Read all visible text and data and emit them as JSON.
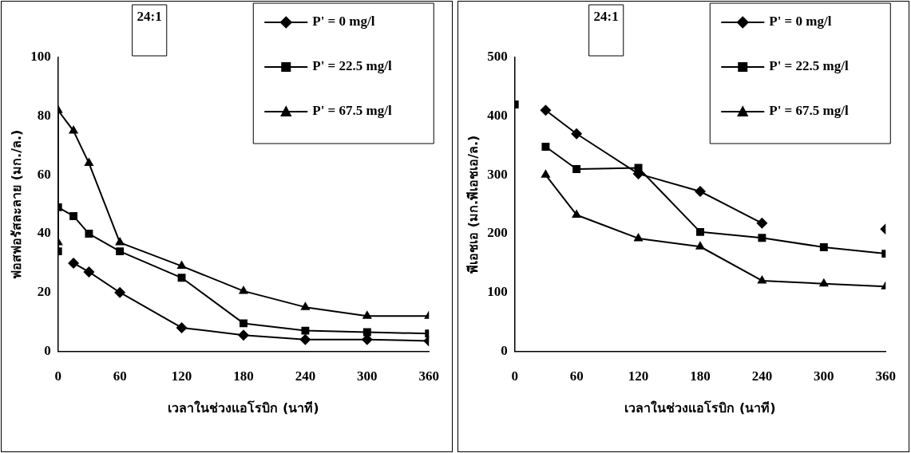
{
  "chart_data": [
    {
      "type": "line",
      "xlabel": "เวลาในช่วงแอโรบิก (นาที)",
      "ylabel": "ฟอสฟอรัสละลาย (มก./ล.)",
      "annotations": [
        "24:1"
      ],
      "xlim": [
        0,
        360
      ],
      "xticks": [
        0,
        60,
        120,
        180,
        240,
        300,
        360
      ],
      "ylim": [
        0,
        100
      ],
      "yticks": [
        0,
        20,
        40,
        60,
        80,
        100
      ],
      "grid": false,
      "legend": "top right",
      "line_style": "solid",
      "series": [
        {
          "name": "P' = 0 mg/l",
          "color": "#000000",
          "marker": "diamond",
          "x": [
            15,
            30,
            60,
            120,
            180,
            240,
            300,
            360
          ],
          "values": [
            30,
            27,
            20,
            8,
            5.5,
            4,
            4,
            3.5
          ]
        },
        {
          "name": "P' = 22.5 mg/l",
          "color": "#000000",
          "marker": "square",
          "x": [
            0,
            0,
            15,
            30,
            60,
            120,
            180,
            240,
            300,
            360
          ],
          "values": [
            34,
            49,
            46,
            40,
            34,
            25,
            9.5,
            7,
            6.5,
            6
          ]
        },
        {
          "name": "P' = 67.5 mg/l",
          "color": "#000000",
          "marker": "triangle",
          "x": [
            0,
            0,
            15,
            30,
            60,
            120,
            180,
            240,
            300,
            360
          ],
          "values": [
            37,
            82,
            75,
            64,
            37,
            29,
            20.5,
            15,
            12,
            12
          ]
        }
      ]
    },
    {
      "type": "line",
      "xlabel": "เวลาในช่วงแอโรบิก (นาที)",
      "ylabel": "พีเอชเอ (มก.พีเอชเอ/ล.)",
      "annotations": [
        "24:1"
      ],
      "xlim": [
        0,
        360
      ],
      "xticks": [
        0,
        60,
        120,
        180,
        240,
        300,
        360
      ],
      "ylim": [
        0,
        500
      ],
      "yticks": [
        0,
        100,
        200,
        300,
        400,
        500
      ],
      "grid": false,
      "legend": "top right",
      "line_style": "solid",
      "series": [
        {
          "name": "P' = 0 mg/l",
          "color": "#000000",
          "marker": "diamond",
          "x": [
            30,
            60,
            120,
            180,
            240,
            300,
            360
          ],
          "values": [
            410,
            370,
            302,
            272,
            218,
            null,
            208
          ]
        },
        {
          "name": "P' = 22.5 mg/l",
          "color": "#000000",
          "marker": "square",
          "x": [
            0,
            15,
            30,
            60,
            120,
            180,
            240,
            300,
            360
          ],
          "values": [
            420,
            null,
            348,
            310,
            312,
            203,
            193,
            177,
            166
          ]
        },
        {
          "name": "P' = 67.5 mg/l",
          "color": "#000000",
          "marker": "triangle",
          "x": [
            30,
            60,
            120,
            180,
            240,
            300,
            360
          ],
          "values": [
            300,
            232,
            192,
            178,
            120,
            115,
            110
          ]
        }
      ]
    }
  ]
}
